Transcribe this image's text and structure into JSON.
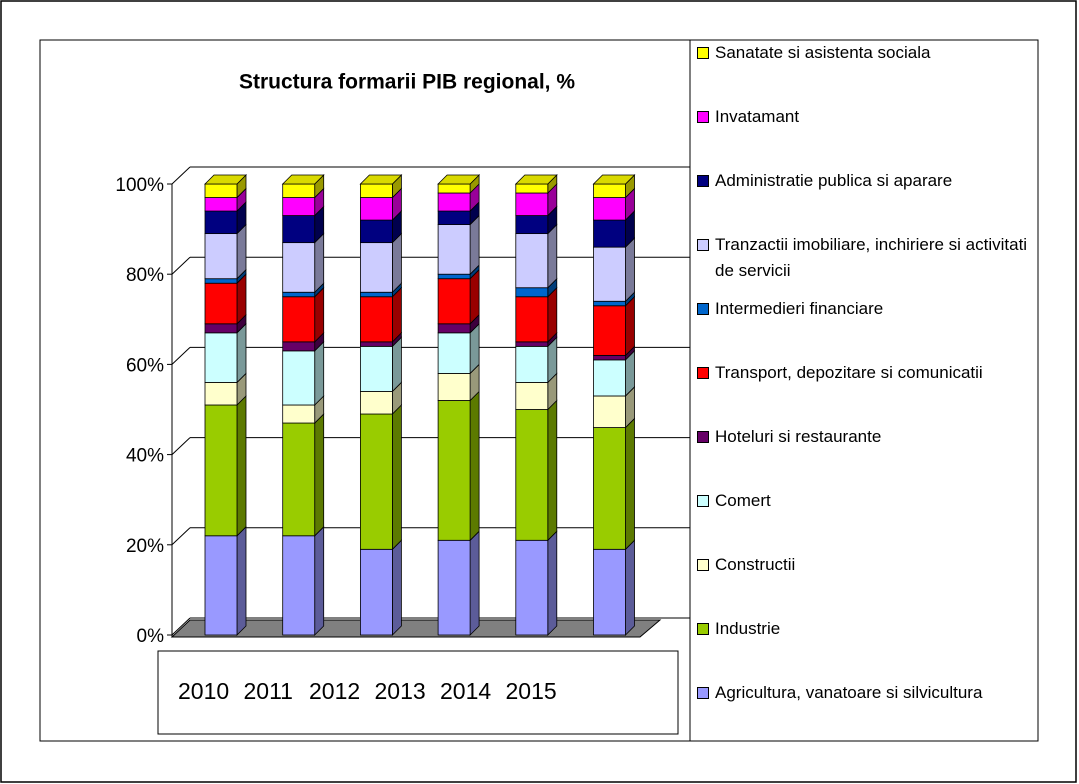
{
  "chart_data": {
    "type": "bar",
    "stacked": true,
    "title": "Structura formarii PIB regional, %",
    "categories": [
      "2010",
      "2011",
      "2012",
      "2013",
      "2014",
      "2015"
    ],
    "series": [
      {
        "name": "Agricultura, vanatoare si silvicultura",
        "color": "#9999ff",
        "values": [
          22,
          22,
          19,
          21,
          21,
          19
        ]
      },
      {
        "name": "Industrie",
        "color": "#99cc00",
        "values": [
          29,
          25,
          30,
          31,
          29,
          27
        ]
      },
      {
        "name": "Constructii",
        "color": "#ffffcc",
        "values": [
          5,
          4,
          5,
          6,
          6,
          7
        ]
      },
      {
        "name": "Comert",
        "color": "#ccffff",
        "values": [
          11,
          12,
          10,
          9,
          8,
          8
        ]
      },
      {
        "name": "Hoteluri si restaurante",
        "color": "#660066",
        "values": [
          2,
          2,
          1,
          2,
          1,
          1
        ]
      },
      {
        "name": "Transport, depozitare si comunicatii",
        "color": "#ff0000",
        "values": [
          9,
          10,
          10,
          10,
          10,
          11
        ]
      },
      {
        "name": "Intermedieri financiare",
        "color": "#0066cc",
        "values": [
          1,
          1,
          1,
          1,
          2,
          1
        ]
      },
      {
        "name": "Tranzactii imobiliare, inchiriere si activitati de servicii",
        "color": "#ccccff",
        "values": [
          10,
          11,
          11,
          11,
          12,
          12
        ]
      },
      {
        "name": "Administratie publica si aparare",
        "color": "#000080",
        "values": [
          5,
          6,
          5,
          3,
          4,
          6
        ]
      },
      {
        "name": "Invatamant",
        "color": "#ff00ff",
        "values": [
          3,
          4,
          5,
          4,
          5,
          5
        ]
      },
      {
        "name": "Sanatate si asistenta sociala",
        "color": "#ffff00",
        "values": [
          3,
          3,
          3,
          2,
          2,
          3
        ]
      }
    ],
    "ylim": [
      0,
      100
    ],
    "yticks": [
      {
        "value": 0,
        "label": "0%"
      },
      {
        "value": 20,
        "label": "20%"
      },
      {
        "value": 40,
        "label": "40%"
      },
      {
        "value": 60,
        "label": "60%"
      },
      {
        "value": 80,
        "label": "80%"
      },
      {
        "value": 100,
        "label": "100%"
      }
    ],
    "grid": true
  }
}
